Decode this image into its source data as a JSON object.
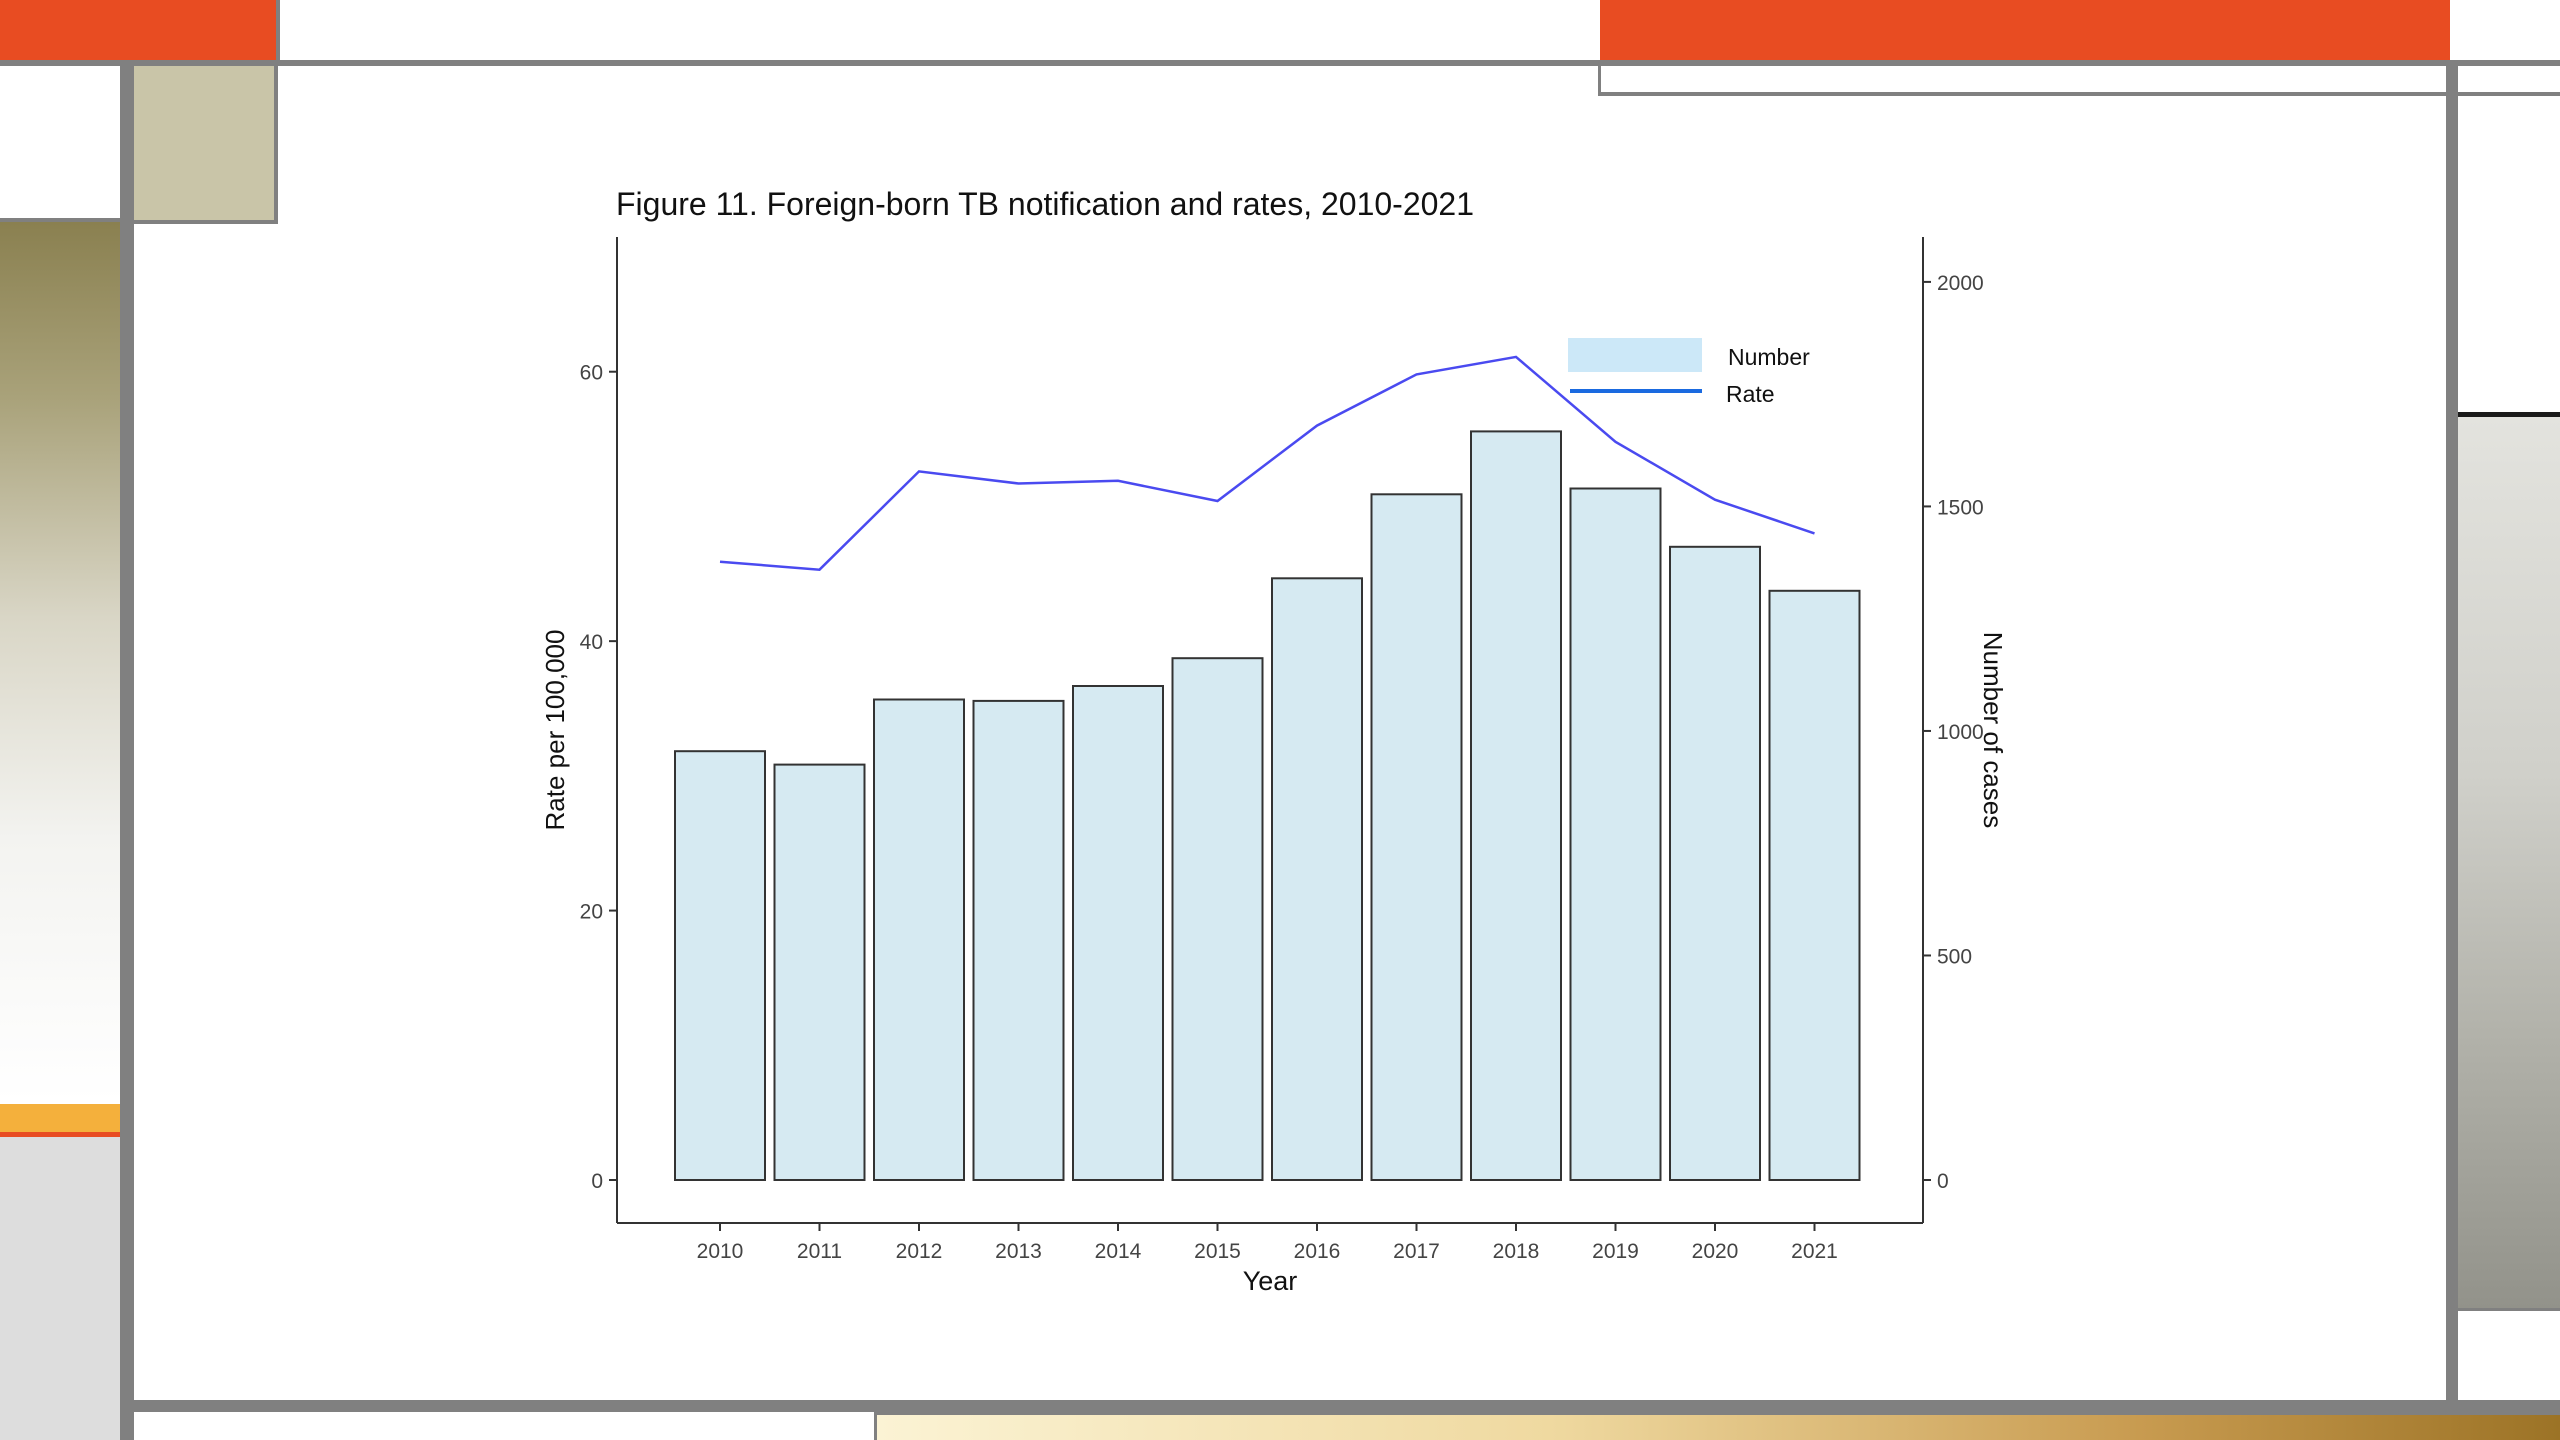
{
  "slide": {
    "accent_color": "#e84c22",
    "border_gray": "#808080"
  },
  "chart_data": {
    "type": "bar",
    "title": "Figure 11. Foreign-born TB notification and rates, 2010-2021",
    "xlabel": "Year",
    "ylabel": "Rate per 100,000",
    "y2label": "Number of cases",
    "categories": [
      "2010",
      "2011",
      "2012",
      "2013",
      "2014",
      "2015",
      "2016",
      "2017",
      "2018",
      "2019",
      "2020",
      "2021"
    ],
    "series": [
      {
        "name": "Number",
        "kind": "bar",
        "axis": "right",
        "color": "#d6eaf2",
        "values": [
          955,
          925,
          1070,
          1067,
          1100,
          1162,
          1340,
          1527,
          1667,
          1540,
          1410,
          1312
        ]
      },
      {
        "name": "Rate",
        "kind": "line",
        "axis": "left",
        "color": "#4a4af0",
        "values": [
          45.9,
          45.3,
          52.6,
          51.7,
          51.9,
          50.4,
          56.0,
          59.8,
          61.1,
          54.8,
          50.5,
          48.0
        ]
      }
    ],
    "ylim": [
      0,
      70
    ],
    "y2lim": [
      0,
      2100
    ],
    "yticks": [
      "0",
      "20",
      "40",
      "60"
    ],
    "y2ticks": [
      "0",
      "500",
      "1000",
      "1500",
      "2000"
    ],
    "legend": {
      "position": "top-right",
      "items": [
        "Number",
        "Rate"
      ]
    },
    "grid": false
  }
}
